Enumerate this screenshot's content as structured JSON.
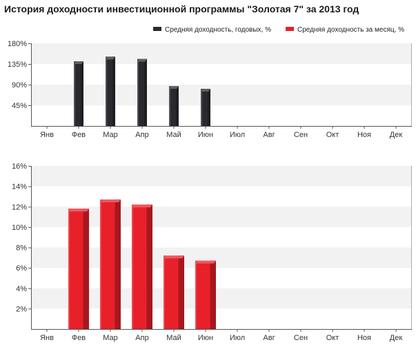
{
  "title": "История доходности инвестиционной программы \"Золотая 7\" за 2013 год",
  "legend": [
    {
      "label": "Средняя доходность, годовых, %",
      "color": "#2b2930"
    },
    {
      "label": "Средняя доходность за месяц, %",
      "color": "#e8202a"
    }
  ],
  "chart_data": [
    {
      "type": "bar",
      "title": "",
      "series": [
        {
          "name": "Средняя доходность, годовых, %",
          "values": [
            0,
            141,
            151,
            146,
            87,
            81,
            0,
            0,
            0,
            0,
            0,
            0
          ]
        }
      ],
      "categories": [
        "Янв",
        "Фев",
        "Мар",
        "Апр",
        "Май",
        "Июн",
        "Июл",
        "Авг",
        "Сен",
        "Окт",
        "Ноя",
        "Дек"
      ],
      "yticks": [
        "45%",
        "90%",
        "135%",
        "180%"
      ],
      "ylim": [
        0,
        180
      ],
      "color": "#2b2930",
      "grid": true
    },
    {
      "type": "bar",
      "title": "",
      "series": [
        {
          "name": "Средняя доходность за месяц, %",
          "values": [
            0,
            11.8,
            12.7,
            12.2,
            7.2,
            6.7,
            0,
            0,
            0,
            0,
            0,
            0
          ]
        }
      ],
      "categories": [
        "Янв",
        "Фев",
        "Мар",
        "Апр",
        "Май",
        "Июн",
        "Июл",
        "Авг",
        "Сен",
        "Окт",
        "Ноя",
        "Дек"
      ],
      "yticks": [
        "2%",
        "4%",
        "6%",
        "8%",
        "10%",
        "12%",
        "14%",
        "16%"
      ],
      "ylim": [
        0,
        16
      ],
      "color": "#e8202a",
      "grid": true
    }
  ]
}
